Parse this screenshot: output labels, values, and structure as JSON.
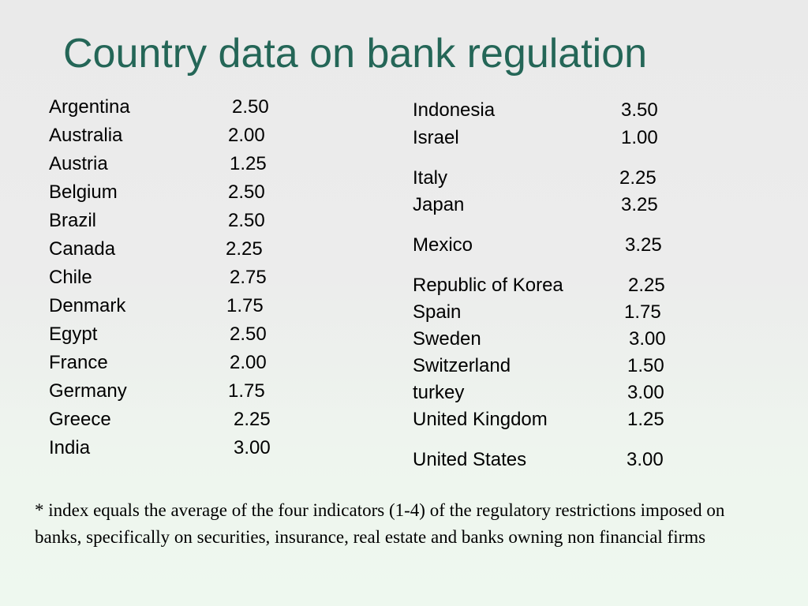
{
  "title": "Country data on bank regulation",
  "left_column": [
    {
      "country": "Argentina",
      "value": "2.50"
    },
    {
      "country": "Australia",
      "value": "2.00"
    },
    {
      "country": "Austria",
      "value": "1.25"
    },
    {
      "country": "Belgium",
      "value": "2.50"
    },
    {
      "country": "Brazil",
      "value": "2.50"
    },
    {
      "country": "Canada",
      "value": "2.25"
    },
    {
      "country": "Chile",
      "value": "2.75"
    },
    {
      "country": "Denmark",
      "value": "1.75"
    },
    {
      "country": "Egypt",
      "value": "2.50"
    },
    {
      "country": "France",
      "value": "2.00"
    },
    {
      "country": "Germany",
      "value": "1.75"
    },
    {
      "country": "Greece",
      "value": "2.25"
    },
    {
      "country": "India",
      "value": "3.00"
    }
  ],
  "right_column": [
    {
      "country": "Indonesia",
      "value": "3.50"
    },
    {
      "country": "Israel",
      "value": "1.00"
    },
    {
      "country": "Italy",
      "value": "2.25"
    },
    {
      "country": "Japan",
      "value": "3.25"
    },
    {
      "country": "Mexico",
      "value": "3.25"
    },
    {
      "country": "Republic of Korea",
      "value": "2.25"
    },
    {
      "country": "Spain",
      "value": "1.75"
    },
    {
      "country": "Sweden",
      "value": "3.00"
    },
    {
      "country": "Switzerland",
      "value": "1.50"
    },
    {
      "country": "turkey",
      "value": "3.00"
    },
    {
      "country": "United Kingdom",
      "value": "1.25"
    },
    {
      "country": "United States",
      "value": "3.00"
    }
  ],
  "footnote": "* index equals the average of  the four  indicators (1-4) of  the regulatory restrictions imposed on banks, specifically on securities, insurance, real estate and  banks owning non financial firms"
}
